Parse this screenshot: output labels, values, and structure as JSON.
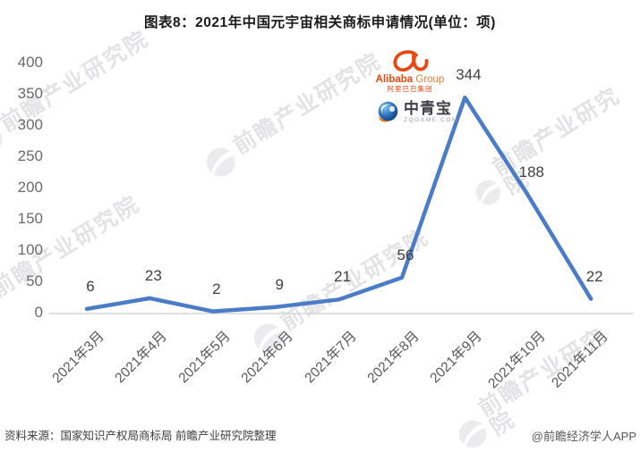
{
  "title": "图表8：2021年中国元宇宙相关商标申请情况(单位：项)",
  "chart_data": {
    "type": "line",
    "title": "图表8：2021年中国元宇宙相关商标申请情况(单位：项)",
    "categories": [
      "2021年3月",
      "2021年4月",
      "2021年5月",
      "2021年6月",
      "2021年7月",
      "2021年8月",
      "2021年9月",
      "2021年10月",
      "2021年11月"
    ],
    "values": [
      6,
      23,
      2,
      9,
      21,
      56,
      344,
      188,
      22
    ],
    "xlabel": "",
    "ylabel": "",
    "ylim": [
      0,
      400
    ],
    "ytick_step": 50,
    "grid": false,
    "legend": "none",
    "line_color": "#4a7cc7",
    "axis_line_color": "#d6d6d6",
    "label_color": "#404040",
    "tick_color": "#6b6b6b"
  },
  "logos": {
    "alibaba": {
      "name_en_bold": "Alibaba",
      "name_en_light": " Group",
      "name_cn": "阿里巴巴集团",
      "color": "#e8490f"
    },
    "zqgame": {
      "name": "中青宝",
      "sub": "ZQGAME.COM"
    }
  },
  "watermark": {
    "text": "前瞻产业研究院",
    "subtext": "· · · · · · · · · ·"
  },
  "footer": {
    "source": "资料来源：国家知识产权局商标局 前瞻产业研究院整理",
    "credit": "@前瞻经济学人APP"
  }
}
